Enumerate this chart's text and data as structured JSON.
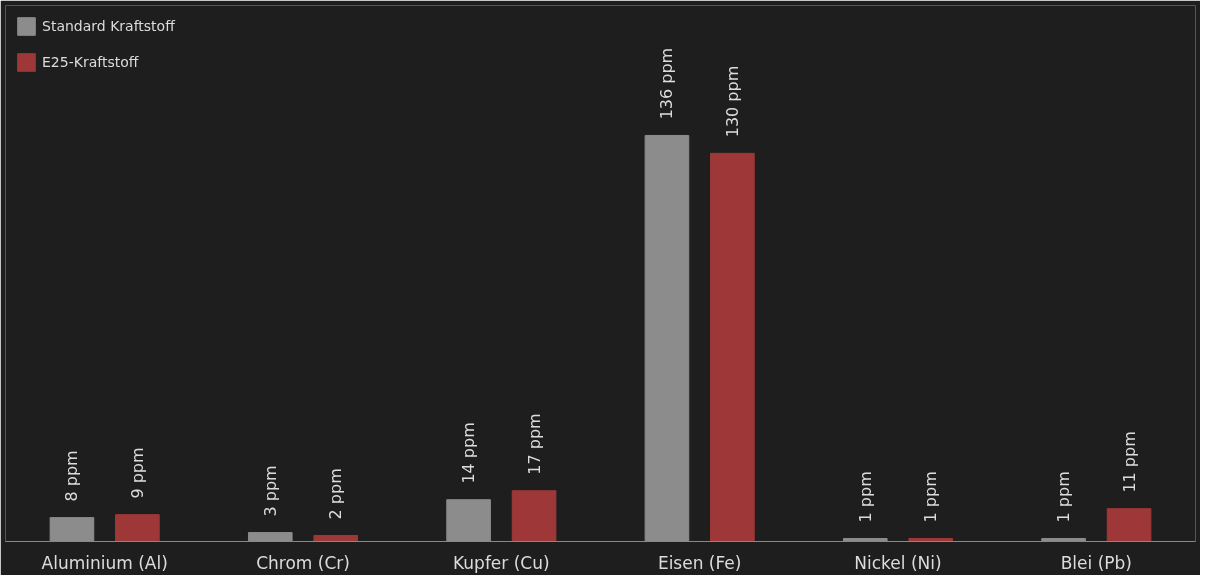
{
  "chart_data": {
    "type": "bar",
    "categories": [
      "Aluminium (Al)",
      "Chrom (Cr)",
      "Kupfer (Cu)",
      "Eisen (Fe)",
      "Nickel (Ni)",
      "Blei (Pb)"
    ],
    "series": [
      {
        "name": "Standard Kraftstoff",
        "color": "#8c8c8c",
        "values": [
          8,
          3,
          14,
          136,
          1,
          1
        ],
        "value_labels": [
          "8 ppm",
          "3 ppm",
          "14 ppm",
          "136 ppm",
          "1 ppm",
          "1 ppm"
        ]
      },
      {
        "name": "E25-Kraftstoff",
        "color": "#9e3838",
        "values": [
          9,
          2,
          17,
          130,
          1,
          11
        ],
        "value_labels": [
          "9 ppm",
          "2 ppm",
          "17 ppm",
          "130 ppm",
          "1 ppm",
          "11 ppm"
        ]
      }
    ],
    "legend": "top left",
    "grid": false
  }
}
